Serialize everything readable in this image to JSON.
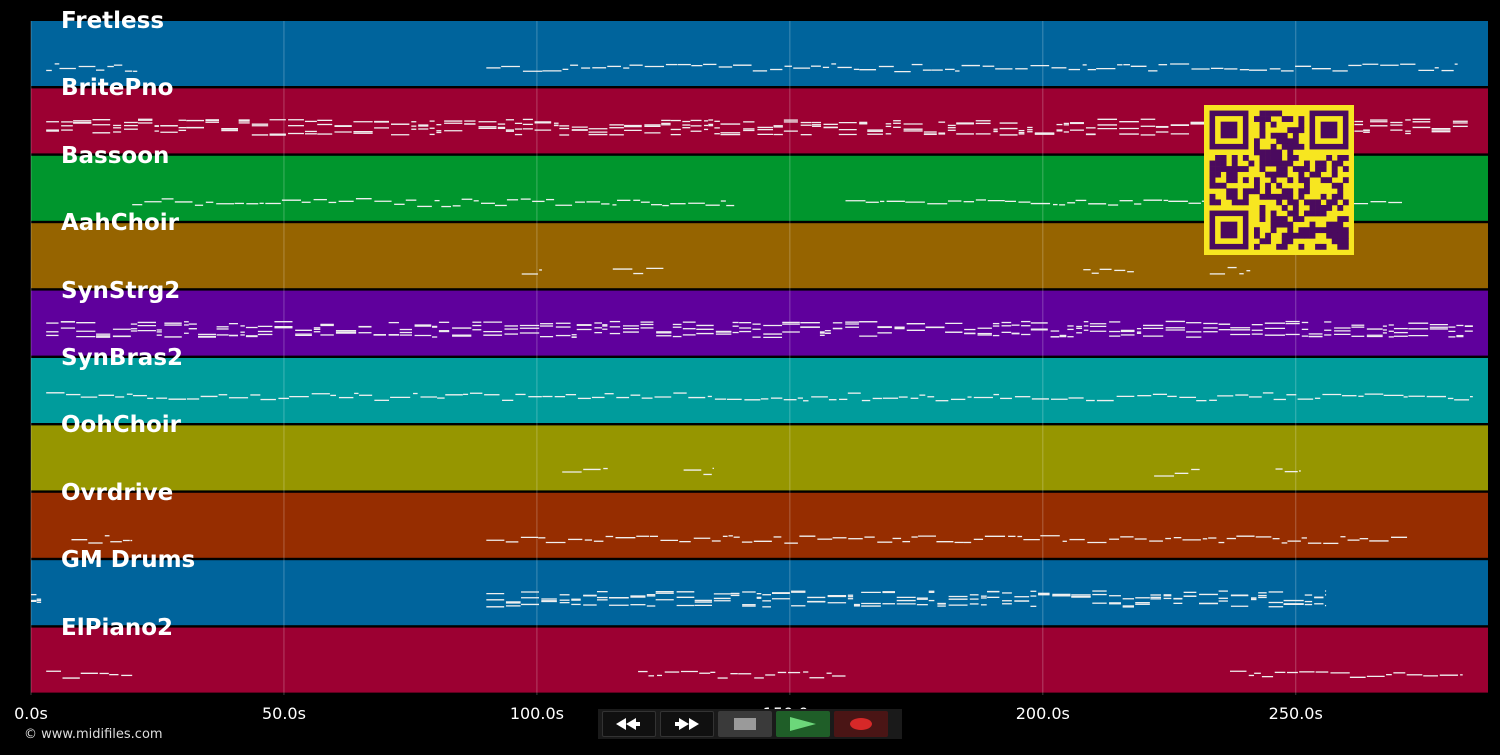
{
  "tracks": [
    {
      "name": "Fretless",
      "color": "#00649c"
    },
    {
      "name": "BritePno",
      "color": "#9c0032"
    },
    {
      "name": "Bassoon",
      "color": "#00962d"
    },
    {
      "name": "AahChoir",
      "color": "#966400"
    },
    {
      "name": "SynStrg2",
      "color": "#5f009c"
    },
    {
      "name": "SynBras2",
      "color": "#009c9c"
    },
    {
      "name": "OohChoir",
      "color": "#969600"
    },
    {
      "name": "Ovrdrive",
      "color": "#962d00"
    },
    {
      "name": "GM Drums",
      "color": "#00649c"
    },
    {
      "name": "ElPiano2",
      "color": "#9c0032"
    }
  ],
  "time_axis": {
    "range_seconds": [
      0,
      288
    ],
    "ticks": [
      {
        "value": 0,
        "label": "0.0s"
      },
      {
        "value": 50,
        "label": "50.0s"
      },
      {
        "value": 100,
        "label": "100.0s"
      },
      {
        "value": 150,
        "label": "150.0s"
      },
      {
        "value": 200,
        "label": "200.0s"
      },
      {
        "value": 250,
        "label": "250.0s"
      }
    ]
  },
  "note_segments": {
    "Fretless": [
      [
        3,
        21
      ],
      [
        90,
        282
      ]
    ],
    "BritePno": [
      [
        3,
        284
      ]
    ],
    "Bassoon": [
      [
        20,
        139
      ],
      [
        161,
        271
      ]
    ],
    "AahChoir": [
      [
        97,
        101
      ],
      [
        115,
        125
      ],
      [
        208,
        218
      ],
      [
        233,
        241
      ]
    ],
    "SynStrg2": [
      [
        3,
        285
      ]
    ],
    "SynBras2": [
      [
        3,
        285
      ]
    ],
    "OohChoir": [
      [
        105,
        114
      ],
      [
        129,
        135
      ],
      [
        222,
        231
      ],
      [
        246,
        251
      ]
    ],
    "Ovrdrive": [
      [
        8,
        20
      ],
      [
        90,
        272
      ]
    ],
    "GM Drums": [
      [
        0,
        2
      ],
      [
        90,
        256
      ]
    ],
    "ElPiano2": [
      [
        3,
        20
      ],
      [
        120,
        161
      ],
      [
        237,
        283
      ]
    ]
  },
  "copyright": "© www.midifiles.com",
  "transport": {
    "rewind_icon": "rewind-icon",
    "forward_icon": "fast-forward-icon",
    "stop_icon": "stop-icon",
    "play_icon": "play-icon",
    "record_icon": "record-icon"
  },
  "qr_code": {
    "icon": "qr-code-icon",
    "fg": "#4a0a5e",
    "bg": "#f7e620"
  }
}
